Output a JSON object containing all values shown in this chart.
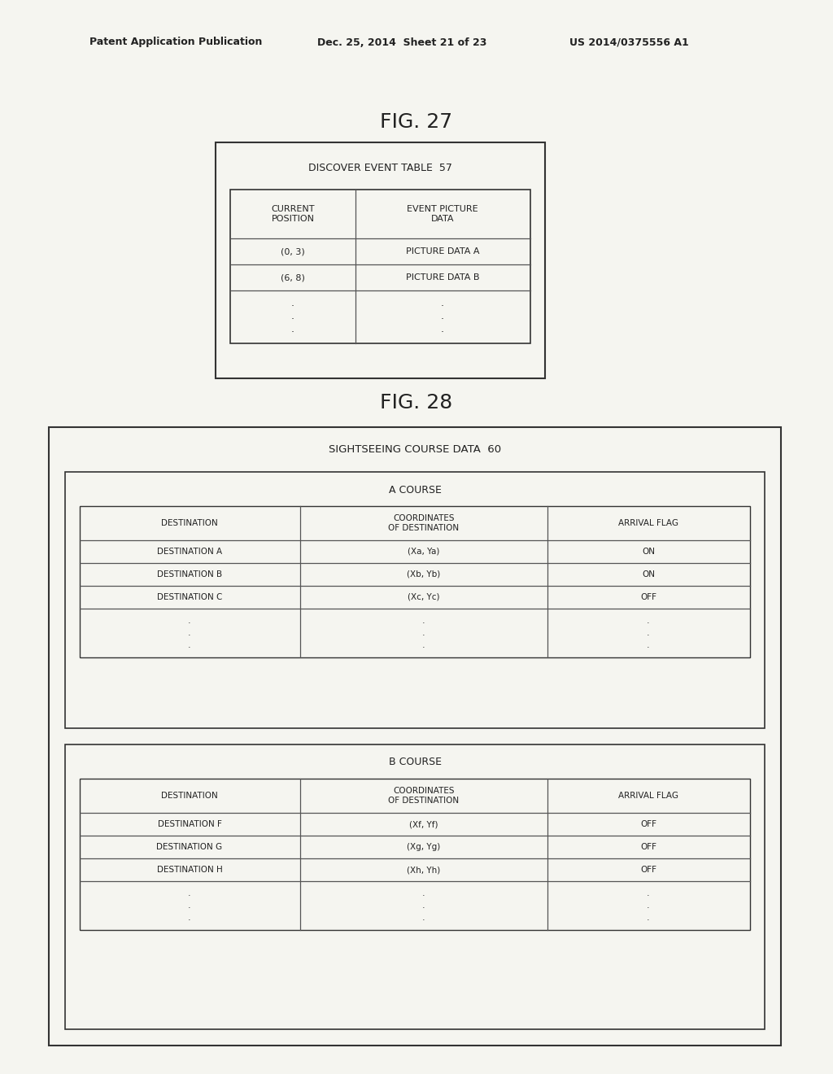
{
  "bg_color": "#f5f5f0",
  "header_text_parts": [
    "Patent Application Publication",
    "Dec. 25, 2014  Sheet 21 of 23",
    "US 2014/0375556 A1"
  ],
  "fig27_title": "FIG. 27",
  "fig28_title": "FIG. 28",
  "fig27": {
    "title": "DISCOVER EVENT TABLE  57",
    "col_headers": [
      "CURRENT\nPOSITION",
      "EVENT PICTURE\nDATA"
    ],
    "rows": [
      [
        "(0, 3)",
        "PICTURE DATA A"
      ],
      [
        "(6, 8)",
        "PICTURE DATA B"
      ],
      [
        ".\n.\n.",
        ".\n.\n."
      ]
    ]
  },
  "fig28": {
    "title": "SIGHTSEEING COURSE DATA  60",
    "a_course": {
      "title": "A COURSE",
      "col_headers": [
        "DESTINATION",
        "COORDINATES\nOF DESTINATION",
        "ARRIVAL FLAG"
      ],
      "rows": [
        [
          "DESTINATION A",
          "(Xa, Ya)",
          "ON"
        ],
        [
          "DESTINATION B",
          "(Xb, Yb)",
          "ON"
        ],
        [
          "DESTINATION C",
          "(Xc, Yc)",
          "OFF"
        ],
        [
          ".\n.\n.",
          ".\n.\n.",
          ".\n.\n."
        ]
      ]
    },
    "b_course": {
      "title": "B COURSE",
      "col_headers": [
        "DESTINATION",
        "COORDINATES\nOF DESTINATION",
        "ARRIVAL FLAG"
      ],
      "rows": [
        [
          "DESTINATION F",
          "(Xf, Yf)",
          "OFF"
        ],
        [
          "DESTINATION G",
          "(Xg, Yg)",
          "OFF"
        ],
        [
          "DESTINATION H",
          "(Xh, Yh)",
          "OFF"
        ],
        [
          ".\n.\n.",
          ".\n.\n.",
          ".\n.\n."
        ]
      ]
    }
  },
  "font_size_table": 8,
  "font_size_fig_label": 16,
  "font_size_patent_header": 9
}
